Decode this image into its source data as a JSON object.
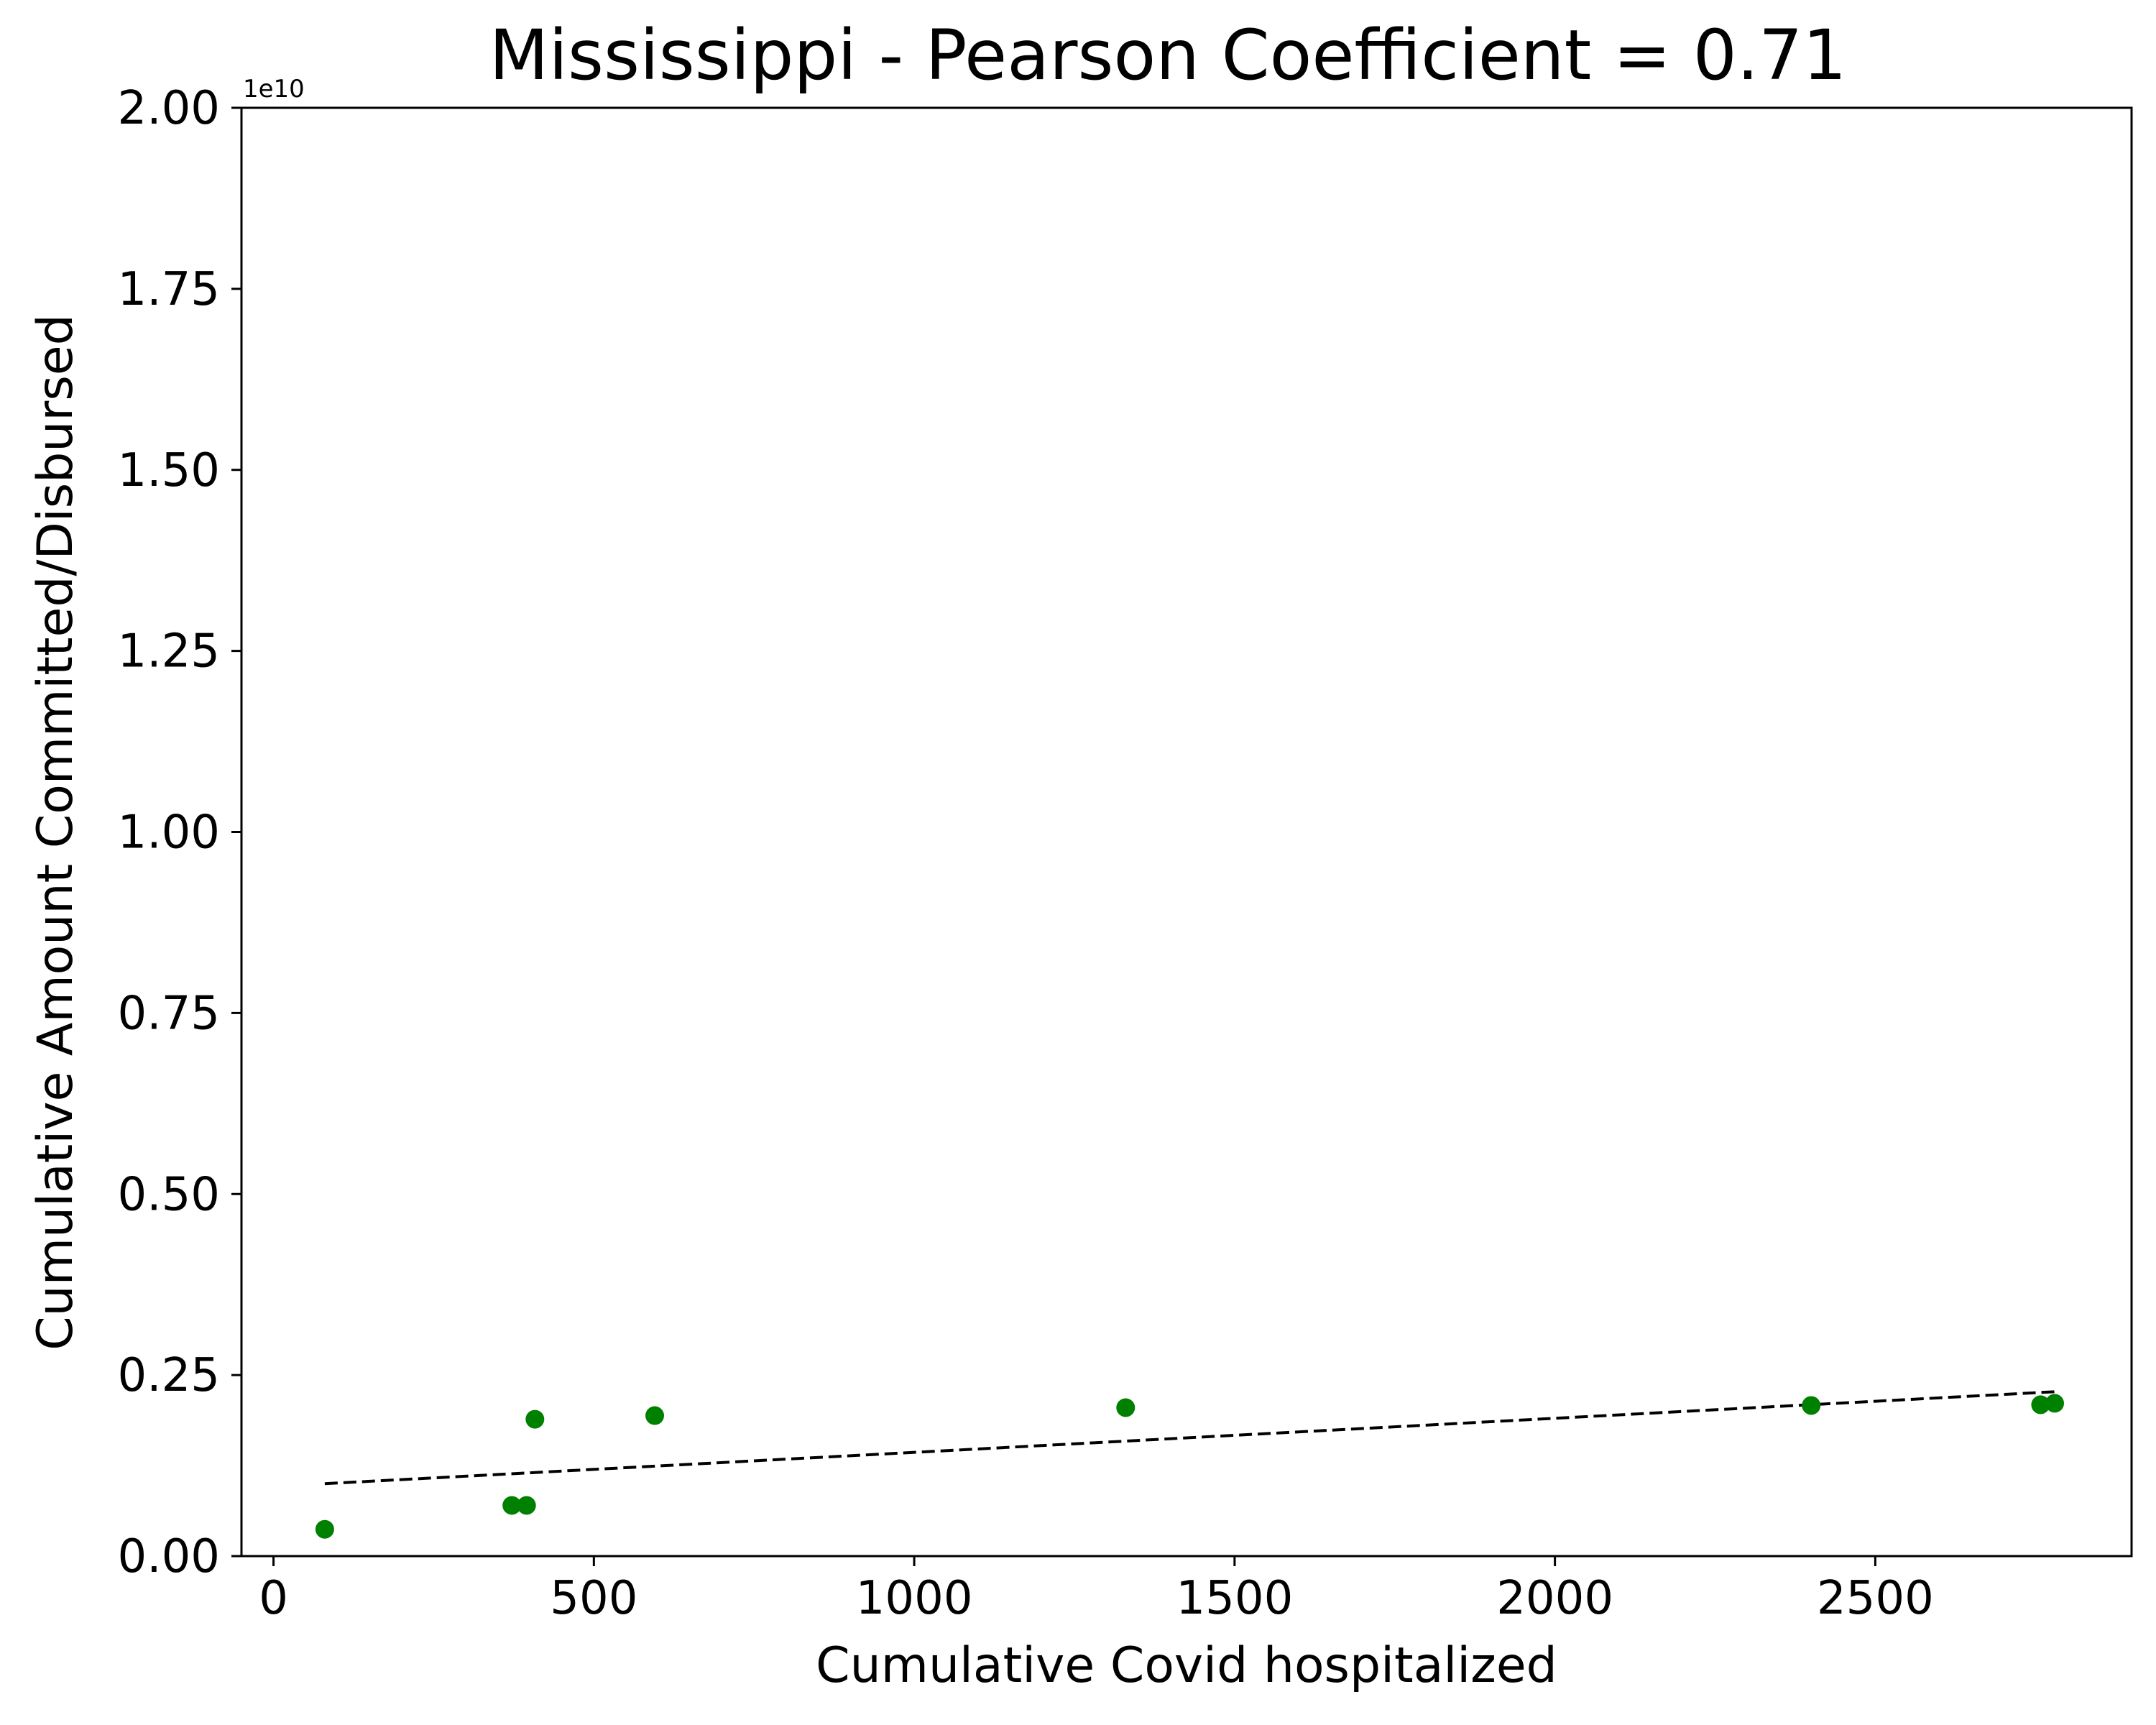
{
  "chart_data": {
    "type": "scatter",
    "title": "Mississippi - Pearson Coefficient = 0.71",
    "xlabel": "Cumulative Covid hospitalized",
    "ylabel": "Cumulative Amount Committed/Disbursed",
    "y_offset_label": "1e10",
    "xlim": [
      -50,
      2900
    ],
    "ylim": [
      0,
      20000000000
    ],
    "x_ticks": [
      0,
      500,
      1000,
      1500,
      2000,
      2500
    ],
    "x_tick_labels": [
      "0",
      "500",
      "1000",
      "1500",
      "2000",
      "2500"
    ],
    "y_ticks": [
      0,
      2500000000,
      5000000000,
      7500000000,
      10000000000,
      12500000000,
      15000000000,
      17500000000,
      20000000000
    ],
    "y_tick_labels": [
      "0.00",
      "0.25",
      "0.50",
      "0.75",
      "1.00",
      "1.25",
      "1.50",
      "1.75",
      "2.00"
    ],
    "grid": false,
    "point_color": "#008000",
    "trend_color": "#000000",
    "points": [
      {
        "x": 80,
        "y": 370000000
      },
      {
        "x": 372,
        "y": 700000000
      },
      {
        "x": 395,
        "y": 700000000
      },
      {
        "x": 408,
        "y": 1890000000
      },
      {
        "x": 595,
        "y": 1940000000
      },
      {
        "x": 1330,
        "y": 2050000000
      },
      {
        "x": 2400,
        "y": 2080000000
      },
      {
        "x": 2758,
        "y": 2090000000
      },
      {
        "x": 2780,
        "y": 2110000000
      }
    ],
    "trendline": {
      "x": [
        80,
        2780
      ],
      "y": [
        1000000000,
        2270000000
      ]
    }
  }
}
